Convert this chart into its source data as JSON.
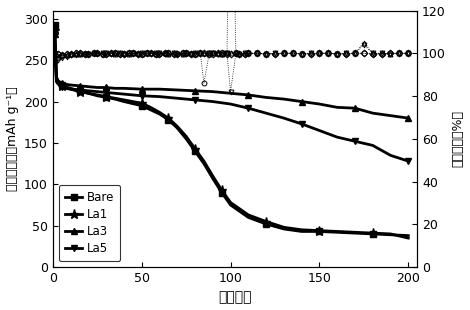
{
  "xlabel": "循环次数",
  "ylabel_left": "放电比容量（mAh g⁻¹）",
  "ylabel_right": "库伦效率（%）",
  "xlim": [
    0,
    205
  ],
  "ylim_left": [
    0,
    310
  ],
  "ylim_right": [
    0,
    120
  ],
  "yticks_left": [
    0,
    50,
    100,
    150,
    200,
    250,
    300
  ],
  "yticks_right": [
    0,
    20,
    40,
    60,
    80,
    100,
    120
  ],
  "xticks": [
    0,
    50,
    100,
    150,
    200
  ],
  "bare_x": [
    1,
    2,
    3,
    5,
    7,
    10,
    15,
    20,
    25,
    30,
    35,
    40,
    50,
    55,
    60,
    65,
    70,
    75,
    80,
    85,
    90,
    95,
    100,
    110,
    120,
    130,
    140,
    150,
    160,
    170,
    180,
    190,
    200
  ],
  "bare_cap": [
    292,
    230,
    225,
    220,
    218,
    216,
    213,
    210,
    207,
    205,
    203,
    200,
    195,
    190,
    185,
    178,
    168,
    155,
    140,
    125,
    107,
    90,
    75,
    60,
    52,
    46,
    43,
    43,
    42,
    41,
    40,
    39,
    38
  ],
  "la1_x": [
    1,
    2,
    3,
    5,
    7,
    10,
    15,
    20,
    25,
    30,
    35,
    40,
    50,
    55,
    60,
    65,
    70,
    75,
    80,
    85,
    90,
    95,
    100,
    110,
    120,
    130,
    140,
    150,
    160,
    170,
    180,
    190,
    200
  ],
  "la1_cap": [
    286,
    226,
    222,
    219,
    217,
    215,
    212,
    210,
    208,
    206,
    204,
    202,
    198,
    193,
    187,
    180,
    170,
    158,
    143,
    128,
    110,
    93,
    78,
    63,
    55,
    48,
    45,
    44,
    43,
    42,
    41,
    40,
    35
  ],
  "la3_x": [
    1,
    2,
    3,
    5,
    7,
    10,
    15,
    20,
    25,
    30,
    35,
    40,
    50,
    60,
    70,
    80,
    90,
    100,
    110,
    120,
    130,
    140,
    150,
    160,
    170,
    180,
    190,
    200
  ],
  "la3_cap": [
    282,
    228,
    225,
    222,
    221,
    220,
    219,
    218,
    217,
    217,
    216,
    216,
    215,
    215,
    214,
    213,
    212,
    210,
    208,
    205,
    203,
    200,
    197,
    193,
    192,
    186,
    183,
    180
  ],
  "la5_x": [
    1,
    2,
    3,
    5,
    7,
    10,
    15,
    20,
    25,
    30,
    35,
    40,
    50,
    60,
    70,
    80,
    90,
    100,
    110,
    120,
    130,
    140,
    150,
    160,
    170,
    180,
    190,
    200
  ],
  "la5_cap": [
    280,
    224,
    221,
    218,
    216,
    215,
    214,
    213,
    212,
    211,
    210,
    209,
    207,
    206,
    204,
    202,
    200,
    197,
    192,
    186,
    180,
    173,
    165,
    157,
    152,
    147,
    135,
    128
  ],
  "bare_eff_x": [
    1,
    3,
    5,
    8,
    10,
    13,
    15,
    18,
    20,
    23,
    25,
    28,
    30,
    33,
    35,
    38,
    40,
    43,
    45,
    48,
    50,
    53,
    55,
    58,
    60,
    63,
    65,
    68,
    70,
    73,
    75,
    78,
    80,
    83,
    85,
    88,
    90,
    93,
    95,
    98,
    100,
    103,
    105,
    108,
    110,
    115,
    120,
    125,
    130,
    135,
    140,
    145,
    150,
    155,
    160,
    165,
    170,
    175,
    180,
    185,
    190,
    195,
    200
  ],
  "bare_eff": [
    100,
    99.5,
    99.2,
    99.6,
    99.8,
    100,
    100,
    99.6,
    99.8,
    100,
    100,
    99.7,
    99.9,
    100,
    100,
    99.7,
    99.9,
    100,
    100,
    99.7,
    99.9,
    100,
    100,
    99.7,
    99.9,
    100,
    100,
    99.7,
    99.9,
    100,
    100,
    99.7,
    99.9,
    100,
    86,
    100,
    100,
    99.7,
    99.9,
    100,
    225,
    100,
    99.7,
    99.9,
    100,
    100,
    99.7,
    99.9,
    100,
    100,
    99.7,
    99.9,
    100,
    100,
    99.7,
    99.9,
    100,
    100,
    99.7,
    99.9,
    100,
    100,
    100
  ],
  "la1_eff_x": [
    1,
    3,
    5,
    8,
    10,
    13,
    15,
    18,
    20,
    23,
    25,
    28,
    30,
    33,
    35,
    38,
    40,
    43,
    45,
    48,
    50,
    53,
    55,
    58,
    60,
    63,
    65,
    68,
    70,
    73,
    75,
    78,
    80,
    83,
    85,
    88,
    90,
    93,
    95,
    98,
    100,
    103,
    105,
    108,
    110,
    115,
    120,
    125,
    130,
    135,
    140,
    145,
    150,
    155,
    160,
    165,
    170,
    175,
    180,
    185,
    190,
    195,
    200
  ],
  "la1_eff": [
    99,
    99.5,
    99.2,
    99.6,
    99.8,
    100,
    100,
    99.6,
    99.8,
    100,
    100,
    99.7,
    99.9,
    100,
    100,
    99.7,
    99.9,
    100,
    100,
    99.7,
    99.9,
    100,
    100,
    99.7,
    99.9,
    100,
    100,
    99.7,
    99.9,
    100,
    100,
    99.7,
    99.9,
    100,
    100,
    99.7,
    99.9,
    100,
    100,
    99.7,
    99.9,
    100,
    99.7,
    99.9,
    100,
    100,
    99.7,
    99.9,
    100,
    100,
    99.7,
    99.9,
    100,
    100,
    99.7,
    99.9,
    100,
    100,
    99.7,
    99.9,
    100,
    100,
    100
  ],
  "la3_eff_x": [
    1,
    3,
    5,
    8,
    10,
    13,
    15,
    18,
    20,
    23,
    25,
    28,
    30,
    33,
    35,
    38,
    40,
    43,
    45,
    48,
    50,
    53,
    55,
    58,
    60,
    63,
    65,
    68,
    70,
    73,
    75,
    78,
    80,
    83,
    85,
    88,
    90,
    93,
    95,
    98,
    100,
    103,
    105,
    108,
    110,
    115,
    120,
    125,
    130,
    135,
    140,
    145,
    150,
    155,
    160,
    165,
    170,
    175,
    180,
    185,
    190,
    195,
    200
  ],
  "la3_eff": [
    97,
    98.5,
    99,
    99.3,
    99.5,
    99.7,
    99.8,
    100,
    99.9,
    100,
    100,
    99.8,
    100,
    100,
    99.8,
    100,
    100,
    99.8,
    100,
    100,
    99.8,
    100,
    100,
    99.8,
    100,
    100,
    99.8,
    100,
    100,
    99.8,
    100,
    100,
    99.8,
    100,
    100,
    99.8,
    100,
    100,
    99.8,
    100,
    100,
    100,
    99.8,
    100,
    100,
    100,
    99.8,
    100,
    100,
    100,
    99.8,
    100,
    100,
    100,
    99.8,
    100,
    100,
    105,
    100,
    100,
    99.8,
    100,
    100
  ],
  "la5_eff_x": [
    1,
    3,
    5,
    8,
    10,
    13,
    15,
    18,
    20,
    23,
    25,
    28,
    30,
    33,
    35,
    38,
    40,
    43,
    45,
    48,
    50,
    53,
    55,
    58,
    60,
    63,
    65,
    68,
    70,
    73,
    75,
    78,
    80,
    83,
    85,
    88,
    90,
    93,
    95,
    98,
    100,
    103,
    105,
    108,
    110,
    115,
    120,
    125,
    130,
    135,
    140,
    145,
    150,
    155,
    160,
    165,
    170,
    175,
    180,
    185,
    190,
    195,
    200
  ],
  "la5_eff": [
    95,
    97,
    98,
    98.5,
    99,
    99.2,
    99.5,
    99.7,
    99.8,
    100,
    99.9,
    100,
    100,
    99.8,
    100,
    100,
    99.8,
    100,
    100,
    99.8,
    100,
    100,
    99.8,
    100,
    100,
    99.8,
    100,
    100,
    99.8,
    100,
    100,
    99.8,
    100,
    100,
    99.8,
    100,
    100,
    99.8,
    100,
    100,
    82,
    100,
    99.8,
    100,
    100,
    100,
    99.8,
    100,
    100,
    100,
    99.8,
    100,
    100,
    100,
    99.8,
    100,
    100,
    104,
    100,
    100,
    99.8,
    100,
    100
  ],
  "color": "#000000",
  "legend_labels": [
    "Bare",
    "La1",
    "La3",
    "La5"
  ]
}
